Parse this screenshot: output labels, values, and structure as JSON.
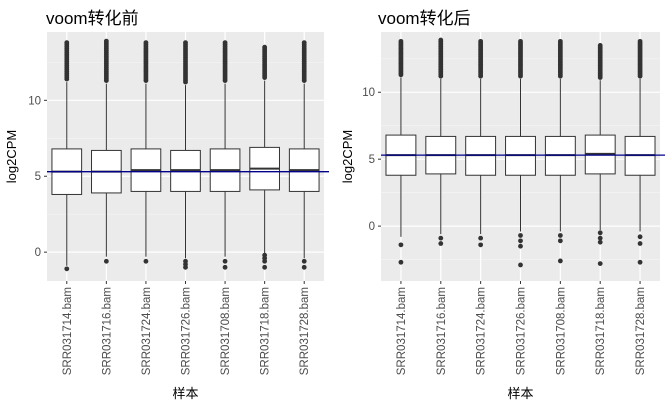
{
  "chart_data": [
    {
      "type": "boxplot",
      "title": "voom转化前",
      "xlabel": "样本",
      "ylabel": "log2CPM",
      "ylim": [
        -1.9,
        14.5
      ],
      "yticks": [
        0,
        5,
        10
      ],
      "reference_line": 5.3,
      "reference_line_color": "#00008b",
      "categories": [
        "SRR031714.bam",
        "SRR031716.bam",
        "SRR031724.bam",
        "SRR031726.bam",
        "SRR031708.bam",
        "SRR031718.bam",
        "SRR031728.bam"
      ],
      "boxes": [
        {
          "whisker_low": -0.9,
          "q1": 3.8,
          "median": 5.3,
          "q3": 6.8,
          "whisker_high": 11.2,
          "outliers_low": [
            -1.1
          ],
          "outliers_high_from": 11.4,
          "outliers_high_to": 13.8
        },
        {
          "whisker_low": -0.3,
          "q1": 3.9,
          "median": 5.3,
          "q3": 6.7,
          "whisker_high": 11.1,
          "outliers_low": [
            -0.6
          ],
          "outliers_high_from": 11.3,
          "outliers_high_to": 13.9
        },
        {
          "whisker_low": -0.3,
          "q1": 4.0,
          "median": 5.4,
          "q3": 6.8,
          "whisker_high": 11.1,
          "outliers_low": [
            -0.6
          ],
          "outliers_high_from": 11.3,
          "outliers_high_to": 13.8
        },
        {
          "whisker_low": -0.4,
          "q1": 4.0,
          "median": 5.4,
          "q3": 6.7,
          "whisker_high": 11.0,
          "outliers_low": [
            -0.6,
            -0.8,
            -1.0
          ],
          "outliers_high_from": 11.2,
          "outliers_high_to": 13.8
        },
        {
          "whisker_low": -0.3,
          "q1": 4.0,
          "median": 5.4,
          "q3": 6.8,
          "whisker_high": 11.1,
          "outliers_low": [
            -0.6,
            -1.0
          ],
          "outliers_high_from": 11.3,
          "outliers_high_to": 13.8
        },
        {
          "whisker_low": -0.1,
          "q1": 4.1,
          "median": 5.5,
          "q3": 6.9,
          "whisker_high": 11.3,
          "outliers_low": [
            -0.2,
            -0.4,
            -0.6,
            -1.0
          ],
          "outliers_high_from": 11.5,
          "outliers_high_to": 13.5
        },
        {
          "whisker_low": -0.4,
          "q1": 4.0,
          "median": 5.4,
          "q3": 6.8,
          "whisker_high": 11.1,
          "outliers_low": [
            -0.6,
            -1.0
          ],
          "outliers_high_from": 11.3,
          "outliers_high_to": 13.8
        }
      ]
    },
    {
      "type": "boxplot",
      "title": "voom转化后",
      "xlabel": "样本",
      "ylabel": "log2CPM",
      "ylim": [
        -4.1,
        14.5
      ],
      "yticks": [
        0,
        5,
        10
      ],
      "reference_line": 5.3,
      "reference_line_color": "#00008b",
      "categories": [
        "SRR031714.bam",
        "SRR031716.bam",
        "SRR031724.bam",
        "SRR031726.bam",
        "SRR031708.bam",
        "SRR031718.bam",
        "SRR031728.bam"
      ],
      "boxes": [
        {
          "whisker_low": -0.8,
          "q1": 3.8,
          "median": 5.3,
          "q3": 6.8,
          "whisker_high": 11.1,
          "outliers_low": [
            -1.4,
            -2.7
          ],
          "outliers_high_from": 11.3,
          "outliers_high_to": 13.8
        },
        {
          "whisker_low": -0.6,
          "q1": 3.9,
          "median": 5.3,
          "q3": 6.7,
          "whisker_high": 11.0,
          "outliers_low": [
            -0.9,
            -1.3
          ],
          "outliers_high_from": 11.2,
          "outliers_high_to": 13.9
        },
        {
          "whisker_low": -0.6,
          "q1": 3.8,
          "median": 5.3,
          "q3": 6.7,
          "whisker_high": 11.0,
          "outliers_low": [
            -0.9,
            -1.4
          ],
          "outliers_high_from": 11.2,
          "outliers_high_to": 13.8
        },
        {
          "whisker_low": -0.4,
          "q1": 3.8,
          "median": 5.3,
          "q3": 6.7,
          "whisker_high": 11.0,
          "outliers_low": [
            -0.7,
            -1.1,
            -1.5,
            -2.9
          ],
          "outliers_high_from": 11.2,
          "outliers_high_to": 13.8
        },
        {
          "whisker_low": -0.4,
          "q1": 3.8,
          "median": 5.3,
          "q3": 6.7,
          "whisker_high": 11.0,
          "outliers_low": [
            -0.7,
            -1.1,
            -2.6
          ],
          "outliers_high_from": 11.2,
          "outliers_high_to": 13.8
        },
        {
          "whisker_low": -0.3,
          "q1": 3.9,
          "median": 5.4,
          "q3": 6.8,
          "whisker_high": 10.9,
          "outliers_low": [
            -0.5,
            -0.9,
            -1.2,
            -2.8
          ],
          "outliers_high_from": 11.1,
          "outliers_high_to": 13.5
        },
        {
          "whisker_low": -0.4,
          "q1": 3.8,
          "median": 5.3,
          "q3": 6.7,
          "whisker_high": 11.0,
          "outliers_low": [
            -0.8,
            -1.3,
            -2.7
          ],
          "outliers_high_from": 11.2,
          "outliers_high_to": 13.8
        }
      ]
    }
  ]
}
